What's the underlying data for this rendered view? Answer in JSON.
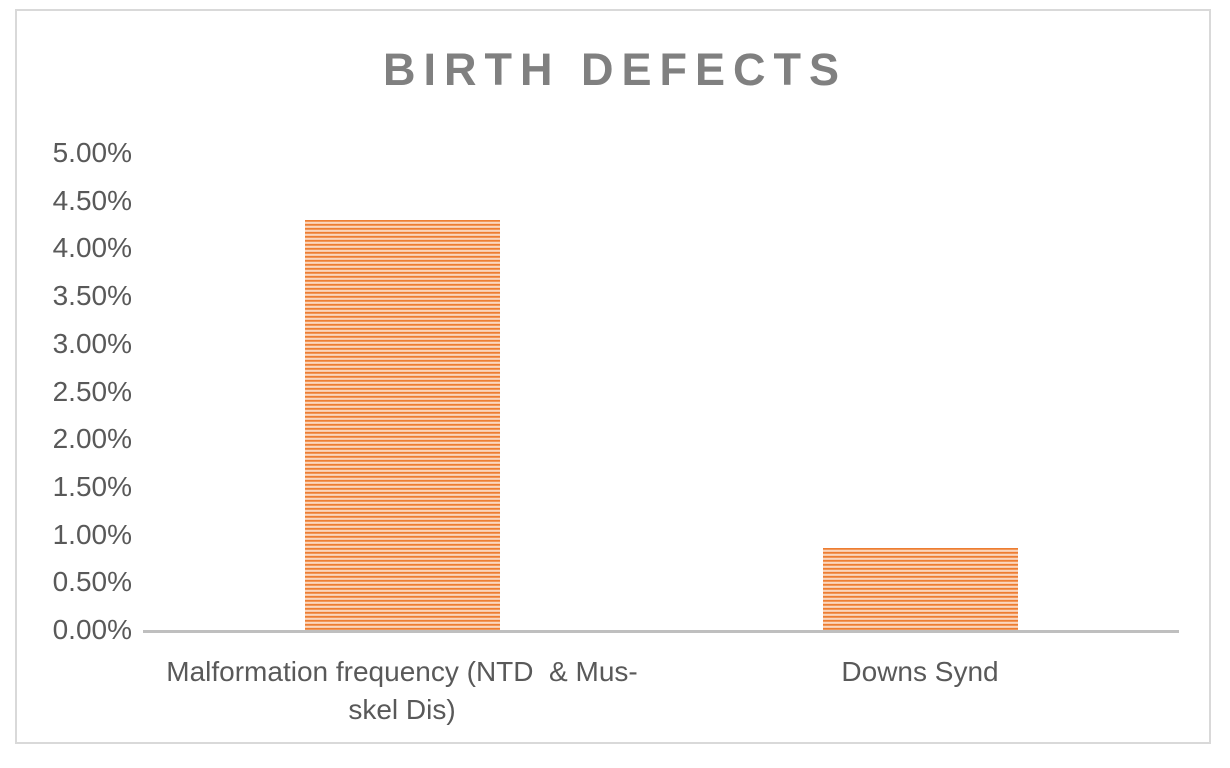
{
  "chart_data": {
    "type": "bar",
    "title": "BIRTH DEFECTS",
    "categories": [
      "Malformation frequency (NTD  & Mus-skel Dis)",
      "Downs Synd"
    ],
    "category_label_lines": [
      [
        "Malformation frequency (NTD  & Mus-",
        "skel Dis)"
      ],
      [
        "Downs Synd"
      ]
    ],
    "values": [
      4.3,
      0.86
    ],
    "value_unit": "%",
    "ylim": [
      0,
      5
    ],
    "ytick_step": 0.5,
    "ytick_labels": [
      "0.00%",
      "0.50%",
      "1.00%",
      "1.50%",
      "2.00%",
      "2.50%",
      "3.00%",
      "3.50%",
      "4.00%",
      "4.50%",
      "5.00%"
    ],
    "grid": false,
    "legend_position": "none",
    "bar_fill_style": "horizontal-stripe-pattern",
    "colors": {
      "bar_stripe_dark": "#ED7D31",
      "bar_stripe_mid": "#F5AC7C",
      "bar_stripe_light": "#FDECDF",
      "axis_line": "#BFBFBF",
      "title_text": "#808080",
      "axis_label_text": "#595959",
      "chart_border": "#D9D9D9"
    }
  }
}
